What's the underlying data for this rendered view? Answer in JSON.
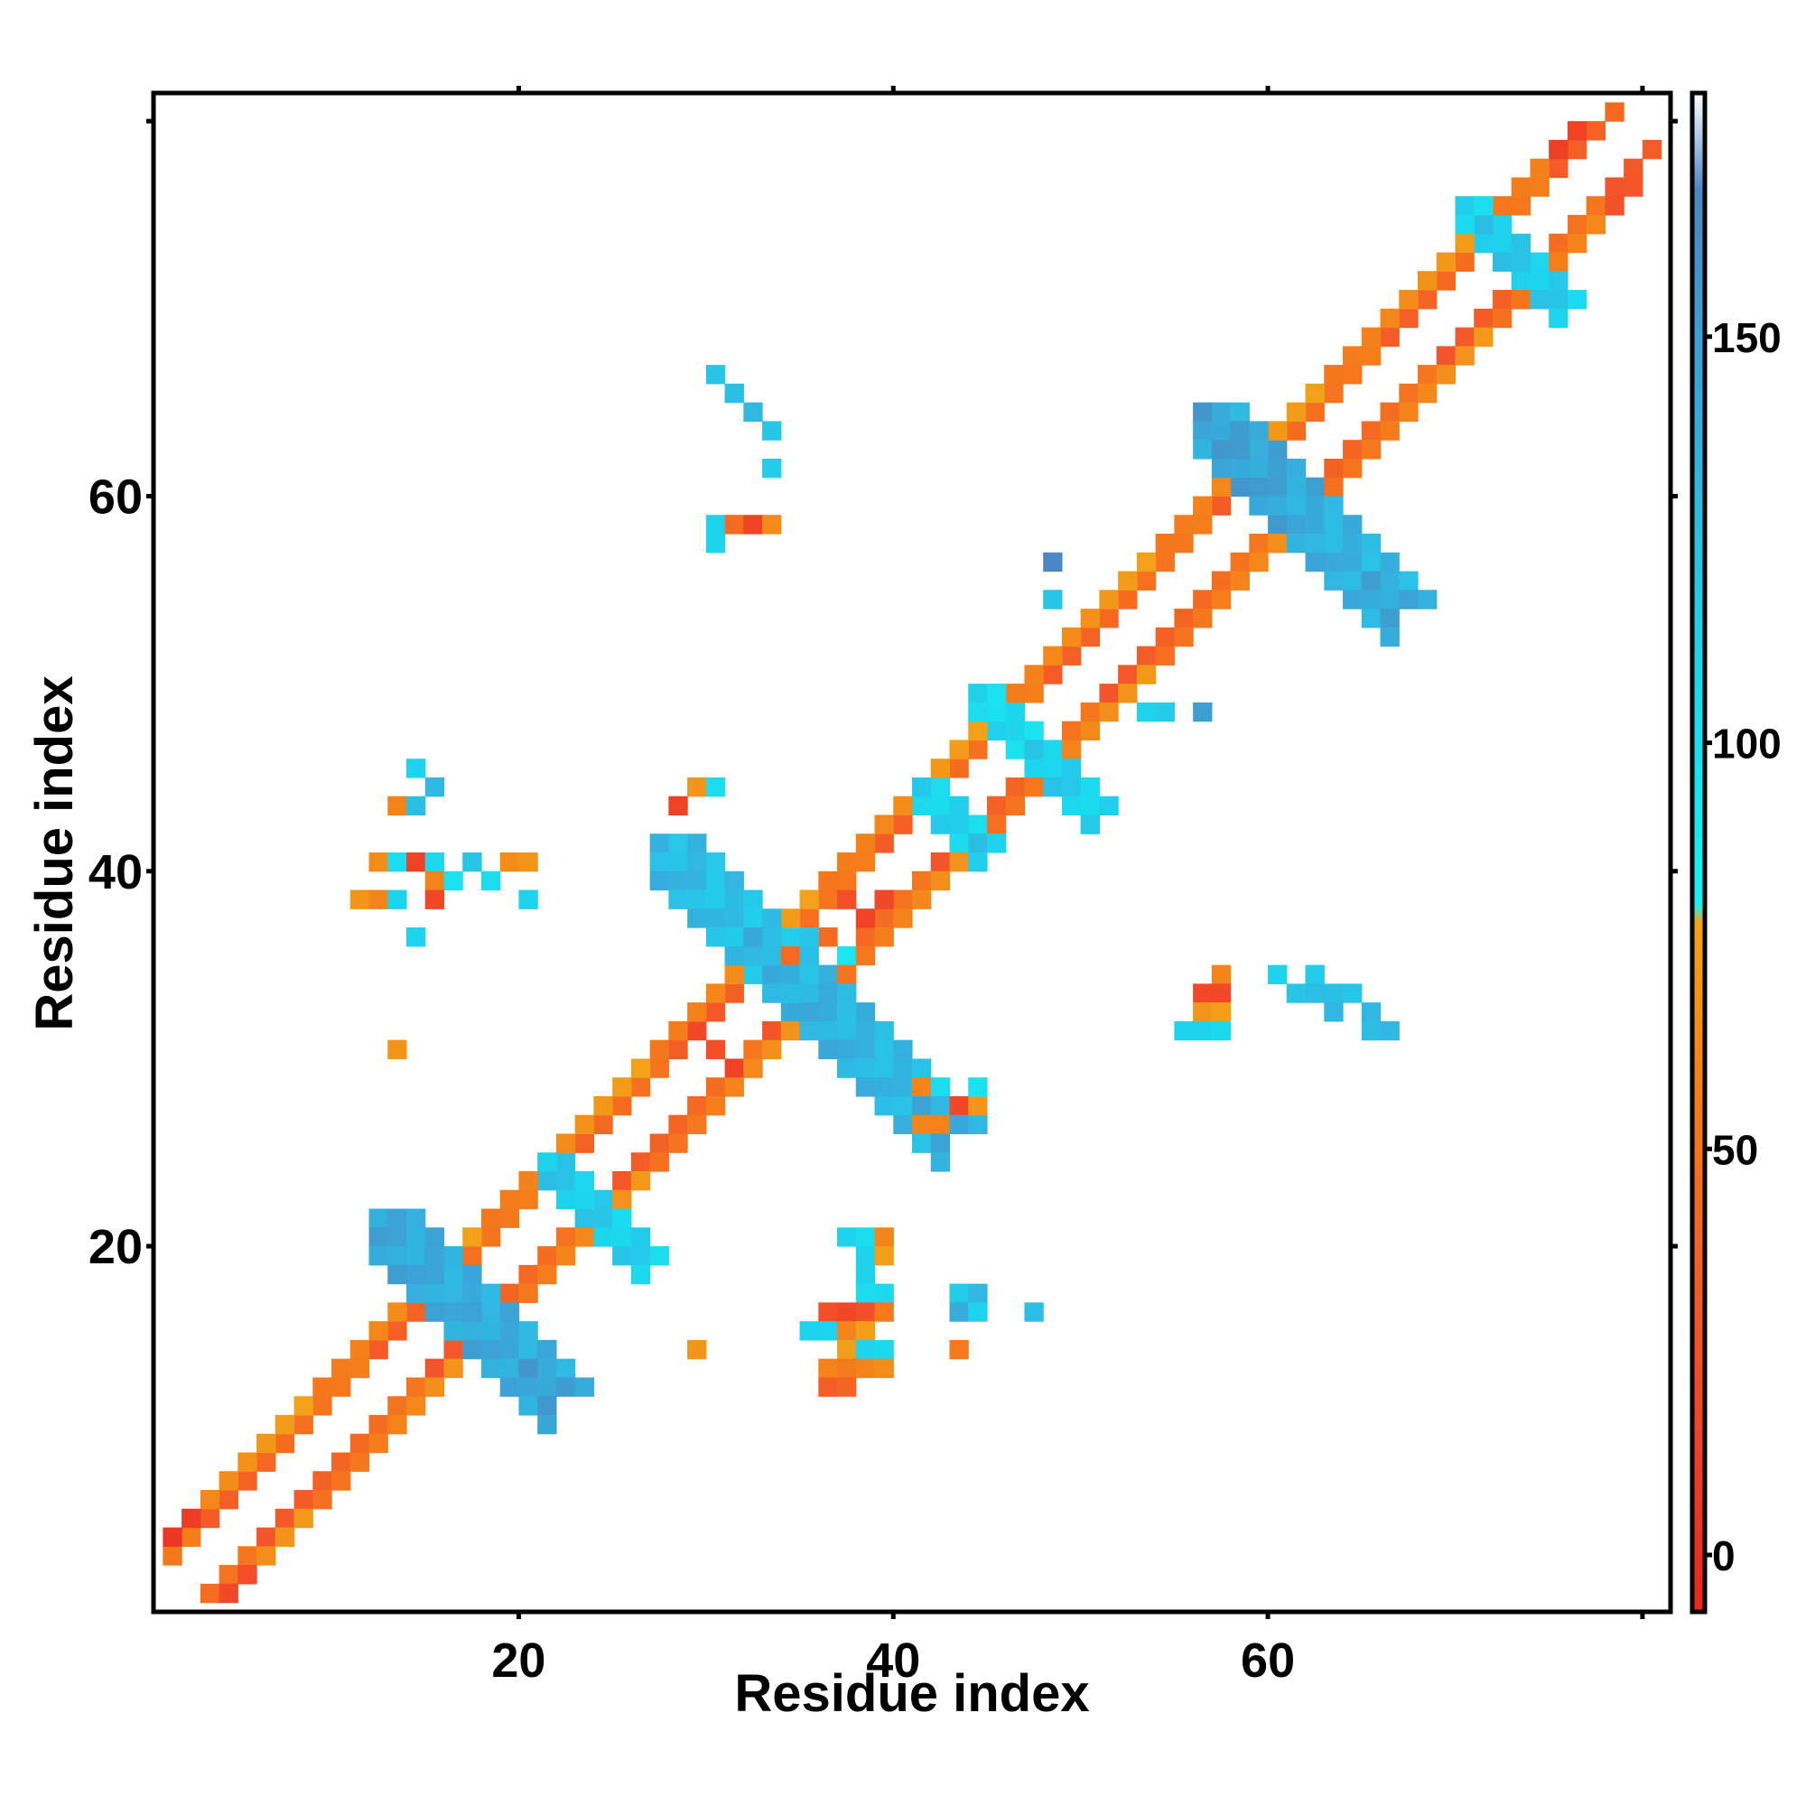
{
  "chart_data": {
    "type": "heatmap",
    "title": "",
    "xlabel": "Residue index",
    "ylabel": "Residue index",
    "xlim": [
      1,
      81
    ],
    "ylim": [
      1,
      81
    ],
    "x_ticks": [
      20,
      40,
      60
    ],
    "y_ticks": [
      20,
      40,
      60
    ],
    "colorbar": {
      "ticks": [
        0,
        50,
        100,
        150
      ],
      "range": [
        -7,
        180
      ],
      "stops": [
        {
          "value": -7,
          "color": "#e8261f"
        },
        {
          "value": 28,
          "color": "#f4542a"
        },
        {
          "value": 55,
          "color": "#f57a1b"
        },
        {
          "value": 78,
          "color": "#f2a318"
        },
        {
          "value": 80,
          "color": "#19f0f2"
        },
        {
          "value": 108,
          "color": "#1cd6ee"
        },
        {
          "value": 130,
          "color": "#30b8e2"
        },
        {
          "value": 168,
          "color": "#4a87c4"
        },
        {
          "value": 180,
          "color": "#ffffff"
        }
      ]
    },
    "segments": [
      {
        "x1": 1,
        "y1": 3,
        "x2": 78,
        "y2": 80,
        "value": 45,
        "width": 1
      },
      {
        "x1": 3,
        "y1": 1,
        "x2": 80,
        "y2": 78,
        "value": 40,
        "width": 1
      },
      {
        "x1": 1,
        "y1": 4,
        "x2": 76,
        "y2": 79,
        "value": 15,
        "width": 1
      },
      {
        "x1": 4,
        "y1": 1,
        "x2": 79,
        "y2": 76,
        "value": 20,
        "width": 1
      },
      {
        "x1": 3,
        "y1": 6,
        "x2": 74,
        "y2": 77,
        "value": 65,
        "width": 1
      },
      {
        "x1": 6,
        "y1": 3,
        "x2": 77,
        "y2": 74,
        "value": 60,
        "width": 1
      },
      {
        "x1": 12,
        "y1": 21,
        "x2": 16,
        "y2": 17,
        "value": 135,
        "width": 3
      },
      {
        "x1": 17,
        "y1": 16,
        "x2": 21,
        "y2": 12,
        "value": 140,
        "width": 3
      },
      {
        "x1": 21,
        "y1": 24,
        "x2": 26,
        "y2": 19,
        "value": 110,
        "width": 2
      },
      {
        "x1": 27,
        "y1": 41,
        "x2": 35,
        "y2": 33,
        "value": 125,
        "width": 3
      },
      {
        "x1": 35,
        "y1": 33,
        "x2": 42,
        "y2": 26,
        "value": 130,
        "width": 3
      },
      {
        "x1": 41,
        "y1": 44,
        "x2": 44,
        "y2": 41,
        "value": 110,
        "width": 2
      },
      {
        "x1": 44,
        "y1": 49,
        "x2": 50,
        "y2": 43,
        "value": 105,
        "width": 2
      },
      {
        "x1": 56,
        "y1": 64,
        "x2": 60,
        "y2": 60,
        "value": 140,
        "width": 3
      },
      {
        "x1": 61,
        "y1": 59,
        "x2": 66,
        "y2": 54,
        "value": 135,
        "width": 3
      },
      {
        "x1": 70,
        "y1": 75,
        "x2": 75,
        "y2": 70,
        "value": 110,
        "width": 2
      }
    ],
    "points": [
      [
        30,
        66,
        120
      ],
      [
        31,
        65,
        125
      ],
      [
        32,
        64,
        130
      ],
      [
        33,
        63,
        120
      ],
      [
        33,
        61,
        115
      ],
      [
        30,
        58,
        110
      ],
      [
        31,
        58,
        45
      ],
      [
        32,
        58,
        15
      ],
      [
        33,
        58,
        65
      ],
      [
        30,
        57,
        110
      ],
      [
        14,
        45,
        110
      ],
      [
        15,
        44,
        130
      ],
      [
        13,
        43,
        60
      ],
      [
        14,
        43,
        125
      ],
      [
        12,
        40,
        65
      ],
      [
        13,
        40,
        100
      ],
      [
        14,
        40,
        15
      ],
      [
        15,
        40,
        105
      ],
      [
        17,
        40,
        120
      ],
      [
        19,
        40,
        65
      ],
      [
        20,
        40,
        70
      ],
      [
        15,
        39,
        60
      ],
      [
        16,
        39,
        95
      ],
      [
        18,
        39,
        100
      ],
      [
        11,
        38,
        70
      ],
      [
        12,
        38,
        60
      ],
      [
        13,
        38,
        110
      ],
      [
        15,
        38,
        20
      ],
      [
        20,
        38,
        110
      ],
      [
        14,
        36,
        110
      ],
      [
        13,
        30,
        70
      ],
      [
        29,
        44,
        70
      ],
      [
        30,
        44,
        100
      ],
      [
        28,
        43,
        15
      ],
      [
        57,
        34,
        60
      ],
      [
        56,
        33,
        20
      ],
      [
        57,
        33,
        20
      ],
      [
        56,
        32,
        70
      ],
      [
        57,
        32,
        75
      ],
      [
        55,
        31,
        110
      ],
      [
        56,
        31,
        110
      ],
      [
        57,
        31,
        105
      ],
      [
        60,
        34,
        110
      ],
      [
        62,
        34,
        115
      ],
      [
        61,
        33,
        120
      ],
      [
        62,
        33,
        125
      ],
      [
        63,
        33,
        125
      ],
      [
        64,
        33,
        120
      ],
      [
        63,
        32,
        130
      ],
      [
        65,
        32,
        130
      ],
      [
        65,
        31,
        125
      ],
      [
        66,
        31,
        130
      ],
      [
        48,
        56,
        168
      ],
      [
        48,
        54,
        120
      ],
      [
        53,
        48,
        110
      ],
      [
        54,
        48,
        115
      ],
      [
        56,
        48,
        150
      ],
      [
        37,
        20,
        110
      ],
      [
        38,
        20,
        100
      ],
      [
        39,
        20,
        60
      ],
      [
        38,
        19,
        110
      ],
      [
        39,
        19,
        75
      ],
      [
        38,
        18,
        110
      ],
      [
        38,
        17,
        100
      ],
      [
        39,
        17,
        105
      ],
      [
        36,
        16,
        25
      ],
      [
        37,
        16,
        20
      ],
      [
        38,
        16,
        25
      ],
      [
        39,
        16,
        55
      ],
      [
        35,
        15,
        110
      ],
      [
        36,
        15,
        110
      ],
      [
        37,
        15,
        60
      ],
      [
        38,
        15,
        75
      ],
      [
        37,
        14,
        75
      ],
      [
        38,
        14,
        110
      ],
      [
        39,
        14,
        105
      ],
      [
        36,
        13,
        60
      ],
      [
        37,
        13,
        55
      ],
      [
        38,
        13,
        60
      ],
      [
        39,
        13,
        65
      ],
      [
        36,
        12,
        35
      ],
      [
        37,
        12,
        40
      ],
      [
        43,
        17,
        115
      ],
      [
        44,
        17,
        130
      ],
      [
        43,
        16,
        140
      ],
      [
        44,
        16,
        110
      ],
      [
        47,
        16,
        125
      ],
      [
        43,
        14,
        55
      ],
      [
        29,
        14,
        70
      ],
      [
        41,
        28,
        60
      ],
      [
        42,
        28,
        100
      ],
      [
        43,
        27,
        20
      ],
      [
        44,
        27,
        70
      ],
      [
        44,
        28,
        95
      ],
      [
        41,
        26,
        60
      ],
      [
        42,
        26,
        60
      ],
      [
        28,
        30,
        35
      ],
      [
        29,
        31,
        20
      ],
      [
        30,
        30,
        25
      ],
      [
        31,
        29,
        15
      ],
      [
        30,
        32,
        30
      ],
      [
        38,
        37,
        15
      ],
      [
        39,
        38,
        20
      ],
      [
        37,
        38,
        25
      ],
      [
        36,
        36,
        45
      ],
      [
        37,
        35,
        90
      ],
      [
        35,
        36,
        120
      ],
      [
        34,
        35,
        45
      ]
    ]
  }
}
